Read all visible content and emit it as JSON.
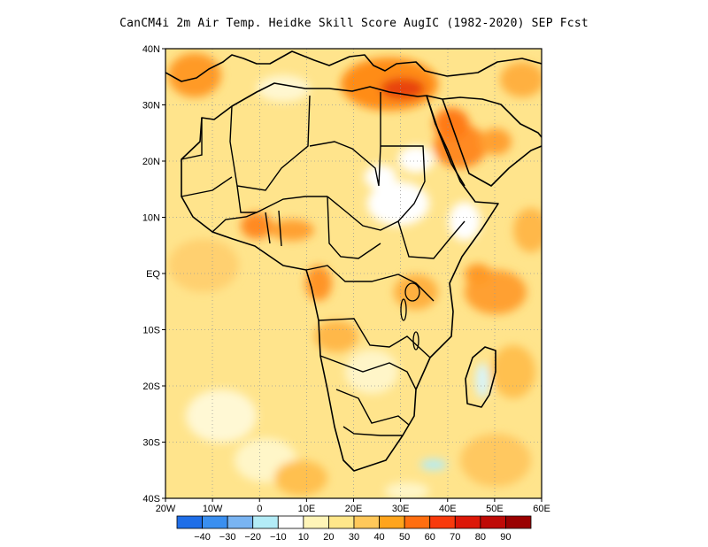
{
  "title": "CanCM4i  2m Air Temp. Heidke Skill Score AugIC (1982-2020) SEP Fcst",
  "map": {
    "lat_labels": [
      "40N",
      "30N",
      "20N",
      "10N",
      "EQ",
      "10S",
      "20S",
      "30S",
      "40S"
    ],
    "lon_labels": [
      "20W",
      "10W",
      "0",
      "10E",
      "20E",
      "30E",
      "40E",
      "50E",
      "60E"
    ],
    "lat_range": [
      -40,
      40
    ],
    "lon_range": [
      -20,
      60
    ],
    "grid": "dotted"
  },
  "colorbar": {
    "colors": [
      "#1f6ee8",
      "#3a8ff0",
      "#79b4f2",
      "#b3ecf7",
      "#ffffff",
      "#fff5b8",
      "#ffe78a",
      "#ffc85a",
      "#ffa41c",
      "#ff6e10",
      "#f83a0c",
      "#dc1808",
      "#bf0a06",
      "#9a0000"
    ],
    "labels": [
      "-40",
      "-30",
      "-20",
      "-10",
      "10",
      "20",
      "30",
      "40",
      "50",
      "60",
      "70",
      "80",
      "90"
    ]
  }
}
